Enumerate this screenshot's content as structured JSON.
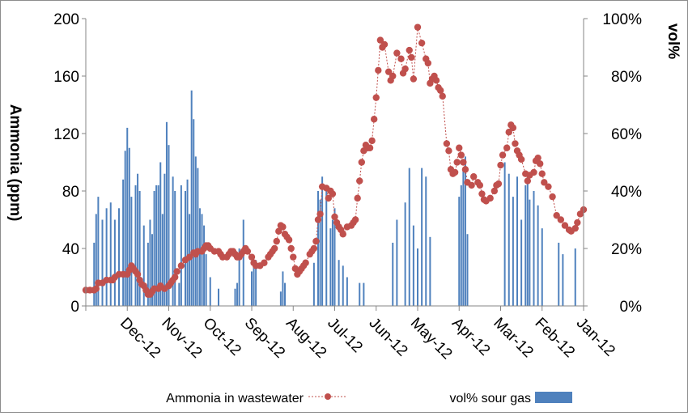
{
  "chart_data": {
    "type": "bar+line",
    "title": "",
    "x_categories": [
      "Jan-12",
      "Feb-12",
      "Mar-12",
      "Apr-12",
      "May-12",
      "Jun-12",
      "Jul-12",
      "Aug-12",
      "Sep-12",
      "Oct-12",
      "Nov-12",
      "Dec-12"
    ],
    "left_axis": {
      "label": "Ammonia (ppm)",
      "ylim": [
        0,
        200
      ],
      "ticks": [
        "0",
        "40",
        "80",
        "120",
        "160",
        "200"
      ]
    },
    "right_axis": {
      "label": "vol%",
      "ylim": [
        0,
        100
      ],
      "ticks": [
        "0%",
        "20%",
        "40%",
        "60%",
        "80%",
        "100%"
      ]
    },
    "legend": {
      "position": "bottom",
      "entries": [
        "vol% sour gas",
        "Ammonia in wastewater"
      ]
    },
    "series": [
      {
        "name": "vol% sour gas",
        "type": "bar",
        "axis": "right",
        "color": "#4f81bd",
        "points": [
          [
            0.2,
            20
          ],
          [
            0.3,
            0
          ],
          [
            0.5,
            18
          ],
          [
            0.6,
            22
          ],
          [
            0.8,
            0
          ],
          [
            1.0,
            27
          ],
          [
            1.1,
            35
          ],
          [
            1.2,
            40
          ],
          [
            1.3,
            37
          ],
          [
            1.35,
            45
          ],
          [
            1.4,
            42
          ],
          [
            1.5,
            30
          ],
          [
            1.6,
            45
          ],
          [
            1.7,
            38
          ],
          [
            1.8,
            46
          ],
          [
            1.9,
            50
          ],
          [
            2.0,
            0
          ],
          [
            2.3,
            0
          ],
          [
            2.6,
            0
          ],
          [
            2.8,
            25
          ],
          [
            2.85,
            52
          ],
          [
            2.9,
            48
          ],
          [
            2.95,
            42
          ],
          [
            3.0,
            38
          ],
          [
            3.1,
            0
          ],
          [
            3.4,
            0
          ],
          [
            3.7,
            24
          ],
          [
            3.8,
            45
          ],
          [
            3.9,
            48
          ],
          [
            4.0,
            20
          ],
          [
            4.1,
            28
          ],
          [
            4.2,
            48
          ],
          [
            4.3,
            36
          ],
          [
            4.5,
            30
          ],
          [
            4.6,
            22
          ],
          [
            4.7,
            0
          ],
          [
            4.9,
            0
          ],
          [
            5.0,
            0
          ],
          [
            5.2,
            0
          ],
          [
            5.3,
            8
          ],
          [
            5.4,
            8
          ],
          [
            5.5,
            0
          ],
          [
            5.6,
            0
          ],
          [
            5.7,
            10
          ],
          [
            5.8,
            14
          ],
          [
            5.9,
            16
          ],
          [
            6.0,
            34
          ],
          [
            6.05,
            30
          ],
          [
            6.1,
            27
          ],
          [
            6.2,
            40
          ],
          [
            6.3,
            45
          ],
          [
            6.35,
            37
          ],
          [
            6.4,
            40
          ],
          [
            6.5,
            15
          ],
          [
            6.8,
            0
          ],
          [
            7.0,
            0
          ],
          [
            7.1,
            0
          ],
          [
            7.2,
            8
          ],
          [
            7.25,
            12
          ],
          [
            7.3,
            5
          ],
          [
            7.5,
            0
          ],
          [
            7.9,
            16
          ],
          [
            7.95,
            14
          ],
          [
            8.0,
            12
          ],
          [
            8.2,
            30
          ],
          [
            8.3,
            20
          ],
          [
            8.35,
            8
          ],
          [
            8.4,
            6
          ],
          [
            8.5,
            0
          ],
          [
            8.8,
            6
          ],
          [
            9.0,
            10
          ],
          [
            9.1,
            18
          ],
          [
            9.15,
            28
          ],
          [
            9.2,
            32
          ],
          [
            9.25,
            34
          ],
          [
            9.3,
            48
          ],
          [
            9.35,
            52
          ],
          [
            9.4,
            65
          ],
          [
            9.45,
            75
          ],
          [
            9.5,
            32
          ],
          [
            9.55,
            44
          ],
          [
            9.6,
            40
          ],
          [
            9.7,
            42
          ],
          [
            9.75,
            8
          ],
          [
            9.85,
            40
          ],
          [
            9.9,
            45
          ],
          [
            10.0,
            56
          ],
          [
            10.05,
            64
          ],
          [
            10.1,
            46
          ],
          [
            10.15,
            32
          ],
          [
            10.2,
            50
          ],
          [
            10.25,
            42
          ],
          [
            10.3,
            42
          ],
          [
            10.35,
            40
          ],
          [
            10.4,
            25
          ],
          [
            10.45,
            30
          ],
          [
            10.5,
            22
          ],
          [
            10.6,
            28
          ],
          [
            10.7,
            40
          ],
          [
            10.75,
            46
          ],
          [
            10.8,
            42
          ],
          [
            10.9,
            38
          ],
          [
            10.95,
            55
          ],
          [
            11.0,
            62
          ],
          [
            11.05,
            54
          ],
          [
            11.1,
            44
          ],
          [
            11.2,
            34
          ],
          [
            11.3,
            30
          ],
          [
            11.4,
            36
          ],
          [
            11.5,
            34
          ],
          [
            11.6,
            30
          ],
          [
            11.7,
            38
          ],
          [
            11.75,
            32
          ],
          [
            11.8,
            22
          ],
          [
            11.85,
            0
          ],
          [
            11.95,
            0
          ]
        ]
      },
      {
        "name": "Ammonia in wastewater",
        "type": "line",
        "axis": "left",
        "color": "#c0504d",
        "points": [
          [
            0.0,
            67
          ],
          [
            0.08,
            64
          ],
          [
            0.15,
            58
          ],
          [
            0.2,
            54
          ],
          [
            0.3,
            52
          ],
          [
            0.35,
            53
          ],
          [
            0.45,
            56
          ],
          [
            0.55,
            60
          ],
          [
            0.65,
            63
          ],
          [
            0.75,
            76
          ],
          [
            0.85,
            83
          ],
          [
            0.95,
            86
          ],
          [
            1.0,
            92
          ],
          [
            1.05,
            99
          ],
          [
            1.1,
            103
          ],
          [
            1.15,
            101
          ],
          [
            1.2,
            93
          ],
          [
            1.3,
            91
          ],
          [
            1.35,
            87
          ],
          [
            1.4,
            92
          ],
          [
            1.5,
            102
          ],
          [
            1.55,
            105
          ],
          [
            1.6,
            108
          ],
          [
            1.65,
            113
          ],
          [
            1.7,
            124
          ],
          [
            1.75,
            126
          ],
          [
            1.8,
            121
          ],
          [
            1.85,
            110
          ],
          [
            1.95,
            105
          ],
          [
            2.0,
            98
          ],
          [
            2.05,
            85
          ],
          [
            2.1,
            84
          ],
          [
            2.15,
            80
          ],
          [
            2.25,
            75
          ],
          [
            2.35,
            73
          ],
          [
            2.4,
            74
          ],
          [
            2.45,
            78
          ],
          [
            2.5,
            84
          ],
          [
            2.55,
            86
          ],
          [
            2.65,
            90
          ],
          [
            2.7,
            84
          ],
          [
            2.8,
            86
          ],
          [
            2.85,
            95
          ],
          [
            2.9,
            100
          ],
          [
            2.95,
            105
          ],
          [
            3.0,
            110
          ],
          [
            3.05,
            100
          ],
          [
            3.1,
            93
          ],
          [
            3.15,
            92
          ],
          [
            3.2,
            95
          ],
          [
            3.25,
            108
          ],
          [
            3.3,
            113
          ],
          [
            3.4,
            146
          ],
          [
            3.45,
            150
          ],
          [
            3.5,
            152
          ],
          [
            3.55,
            157
          ],
          [
            3.6,
            160
          ],
          [
            3.65,
            158
          ],
          [
            3.7,
            155
          ],
          [
            3.75,
            169
          ],
          [
            3.8,
            172
          ],
          [
            3.9,
            183
          ],
          [
            4.0,
            194
          ],
          [
            4.1,
            158
          ],
          [
            4.15,
            173
          ],
          [
            4.2,
            178
          ],
          [
            4.3,
            165
          ],
          [
            4.35,
            162
          ],
          [
            4.4,
            172
          ],
          [
            4.5,
            176
          ],
          [
            4.6,
            160
          ],
          [
            4.65,
            157
          ],
          [
            4.7,
            163
          ],
          [
            4.8,
            182
          ],
          [
            4.85,
            180
          ],
          [
            4.9,
            185
          ],
          [
            4.95,
            164
          ],
          [
            5.0,
            145
          ],
          [
            5.05,
            130
          ],
          [
            5.1,
            115
          ],
          [
            5.15,
            110
          ],
          [
            5.2,
            110
          ],
          [
            5.25,
            112
          ],
          [
            5.3,
            108
          ],
          [
            5.35,
            100
          ],
          [
            5.4,
            87
          ],
          [
            5.45,
            75
          ],
          [
            5.5,
            60
          ],
          [
            5.55,
            58
          ],
          [
            5.6,
            56
          ],
          [
            5.7,
            55
          ],
          [
            5.8,
            50
          ],
          [
            5.85,
            53
          ],
          [
            5.9,
            55
          ],
          [
            5.95,
            58
          ],
          [
            6.0,
            62
          ],
          [
            6.05,
            78
          ],
          [
            6.1,
            80
          ],
          [
            6.15,
            75
          ],
          [
            6.2,
            82
          ],
          [
            6.3,
            83
          ],
          [
            6.35,
            64
          ],
          [
            6.4,
            60
          ],
          [
            6.45,
            45
          ],
          [
            6.5,
            40
          ],
          [
            6.55,
            38
          ],
          [
            6.6,
            36
          ],
          [
            6.7,
            30
          ],
          [
            6.75,
            28
          ],
          [
            6.8,
            26
          ],
          [
            6.85,
            24
          ],
          [
            6.9,
            22
          ],
          [
            6.95,
            26
          ],
          [
            7.0,
            34
          ],
          [
            7.05,
            40
          ],
          [
            7.1,
            46
          ],
          [
            7.15,
            48
          ],
          [
            7.2,
            50
          ],
          [
            7.25,
            55
          ],
          [
            7.3,
            56
          ],
          [
            7.35,
            52
          ],
          [
            7.4,
            45
          ],
          [
            7.45,
            40
          ],
          [
            7.5,
            38
          ],
          [
            7.55,
            36
          ],
          [
            7.6,
            34
          ],
          [
            7.7,
            30
          ],
          [
            7.8,
            28
          ],
          [
            7.9,
            28
          ],
          [
            7.95,
            30
          ],
          [
            8.0,
            34
          ],
          [
            8.1,
            38
          ],
          [
            8.15,
            40
          ],
          [
            8.2,
            38
          ],
          [
            8.25,
            36
          ],
          [
            8.3,
            34
          ],
          [
            8.35,
            34
          ],
          [
            8.4,
            36
          ],
          [
            8.45,
            38
          ],
          [
            8.5,
            38
          ],
          [
            8.55,
            36
          ],
          [
            8.6,
            34
          ],
          [
            8.7,
            34
          ],
          [
            8.75,
            36
          ],
          [
            8.8,
            38
          ],
          [
            8.9,
            38
          ],
          [
            9.0,
            40
          ],
          [
            9.05,
            42
          ],
          [
            9.1,
            42
          ],
          [
            9.15,
            40
          ],
          [
            9.2,
            38
          ],
          [
            9.3,
            38
          ],
          [
            9.35,
            36
          ],
          [
            9.4,
            37
          ],
          [
            9.5,
            34
          ],
          [
            9.6,
            32
          ],
          [
            9.7,
            28
          ],
          [
            9.8,
            24
          ],
          [
            9.85,
            20
          ],
          [
            9.9,
            18
          ],
          [
            9.95,
            16
          ],
          [
            10.0,
            14
          ],
          [
            10.1,
            12
          ],
          [
            10.2,
            14
          ],
          [
            10.25,
            12
          ],
          [
            10.35,
            12
          ],
          [
            10.4,
            10
          ],
          [
            10.45,
            8
          ],
          [
            10.5,
            8
          ],
          [
            10.55,
            11
          ],
          [
            10.6,
            14
          ],
          [
            10.65,
            15
          ],
          [
            10.7,
            18
          ],
          [
            10.75,
            22
          ],
          [
            10.8,
            24
          ],
          [
            10.85,
            26
          ],
          [
            10.9,
            28
          ],
          [
            10.95,
            25
          ],
          [
            11.0,
            22
          ],
          [
            11.1,
            22
          ],
          [
            11.2,
            22
          ],
          [
            11.3,
            20
          ],
          [
            11.35,
            18
          ],
          [
            11.4,
            18
          ],
          [
            11.5,
            18
          ],
          [
            11.6,
            16
          ],
          [
            11.7,
            16
          ],
          [
            11.75,
            12
          ],
          [
            11.8,
            11
          ],
          [
            11.9,
            11
          ],
          [
            12.0,
            11
          ]
        ]
      }
    ]
  }
}
